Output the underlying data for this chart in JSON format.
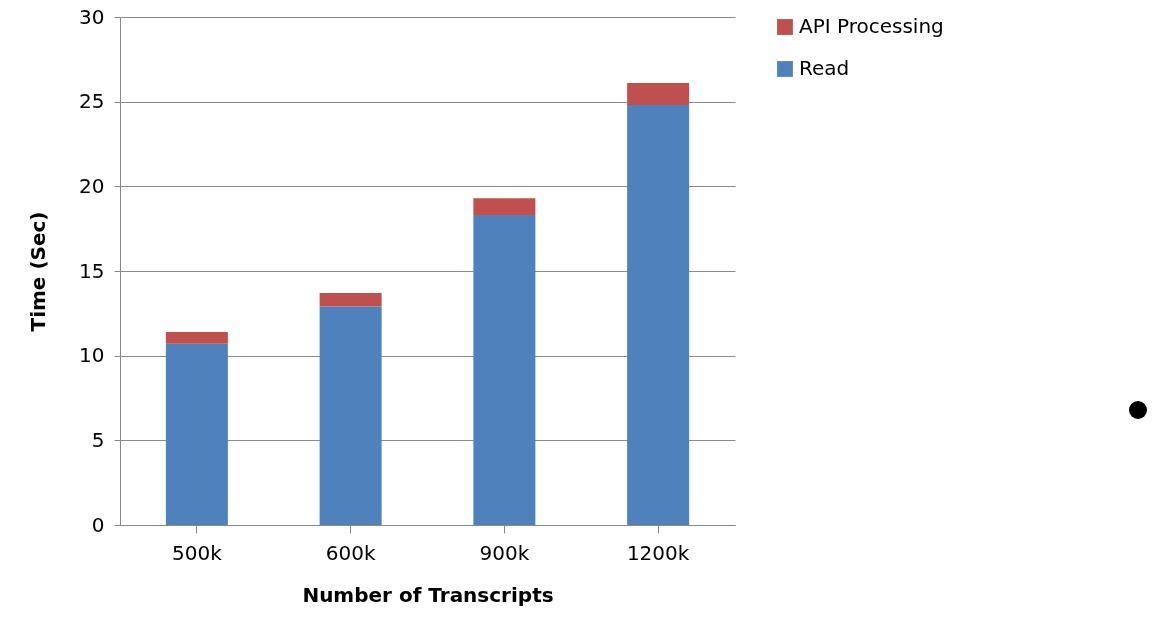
{
  "chart_data": {
    "type": "bar",
    "stacked": true,
    "xlabel": "Number of Transcripts",
    "ylabel": "Time (Sec)",
    "categories": [
      "500k",
      "600k",
      "900k",
      "1200k"
    ],
    "series": [
      {
        "name": "Read",
        "color": "#4f81bd",
        "values": [
          10.7,
          12.9,
          18.3,
          24.8
        ]
      },
      {
        "name": "API Processing",
        "color": "#c0504d",
        "values": [
          0.7,
          0.8,
          1.0,
          1.3
        ]
      }
    ],
    "ylim": [
      0,
      30
    ],
    "yticks": [
      0,
      5,
      10,
      15,
      20,
      25,
      30
    ],
    "grid": "y",
    "legend": "right"
  }
}
